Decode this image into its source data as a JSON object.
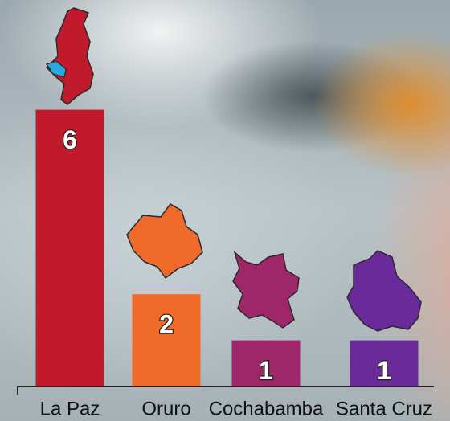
{
  "chart_data": {
    "type": "bar",
    "categories": [
      "La Paz",
      "Oruro",
      "Cochabamba",
      "Santa Cruz"
    ],
    "values": [
      6,
      2,
      1,
      1
    ],
    "colors": [
      "#c01a2c",
      "#f06a2a",
      "#a0266a",
      "#6a2a9a"
    ]
  }
}
